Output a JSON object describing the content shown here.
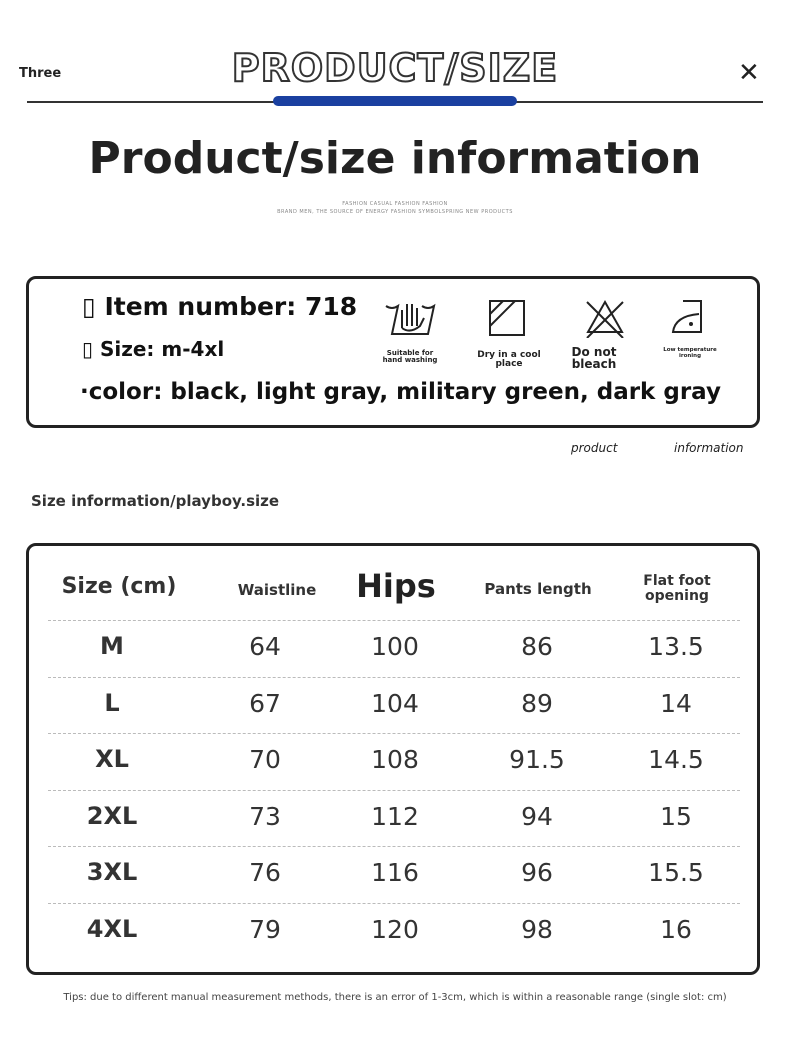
{
  "header": {
    "tab_label": "Three",
    "brand_title": "PRODUCT/SIZE",
    "close_icon": "close-icon",
    "accent_color": "#1a40a0"
  },
  "page_title": "Product/size information",
  "subtitle_lines": [
    "FASHION CASUAL FASHION FASHION",
    "BRAND MEN, THE SOURCE OF ENERGY FASHION SYMBOLSPRING NEW PRODUCTS"
  ],
  "product_info": {
    "item_number": "▯ Item number: 718",
    "size": "▯ Size: m-4xl",
    "color": "·color: black, light gray, military green, dark gray"
  },
  "care": [
    {
      "icon": "hand-wash-icon",
      "label": "Suitable for hand washing"
    },
    {
      "icon": "dry-shade-icon",
      "label": "Dry in a cool place"
    },
    {
      "icon": "no-bleach-icon",
      "label": "Do not bleach"
    },
    {
      "icon": "low-iron-icon",
      "label": "Low temperature ironing"
    }
  ],
  "caption": {
    "left": "product",
    "right": "information"
  },
  "size_section_title": "Size information/playboy.size",
  "table": {
    "headers": [
      "Size (cm)",
      "Waistline",
      "Hips",
      "Pants length",
      "Flat foot opening"
    ],
    "rows": [
      [
        "M",
        "64",
        "100",
        "86",
        "13.5"
      ],
      [
        "L",
        "67",
        "104",
        "89",
        "14"
      ],
      [
        "XL",
        "70",
        "108",
        "91.5",
        "14.5"
      ],
      [
        "2XL",
        "73",
        "112",
        "94",
        "15"
      ],
      [
        "3XL",
        "76",
        "116",
        "96",
        "15.5"
      ],
      [
        "4XL",
        "79",
        "120",
        "98",
        "16"
      ]
    ]
  },
  "tips": "Tips: due to different manual measurement methods, there is an error of 1-3cm, which is within a reasonable range (single slot: cm)"
}
